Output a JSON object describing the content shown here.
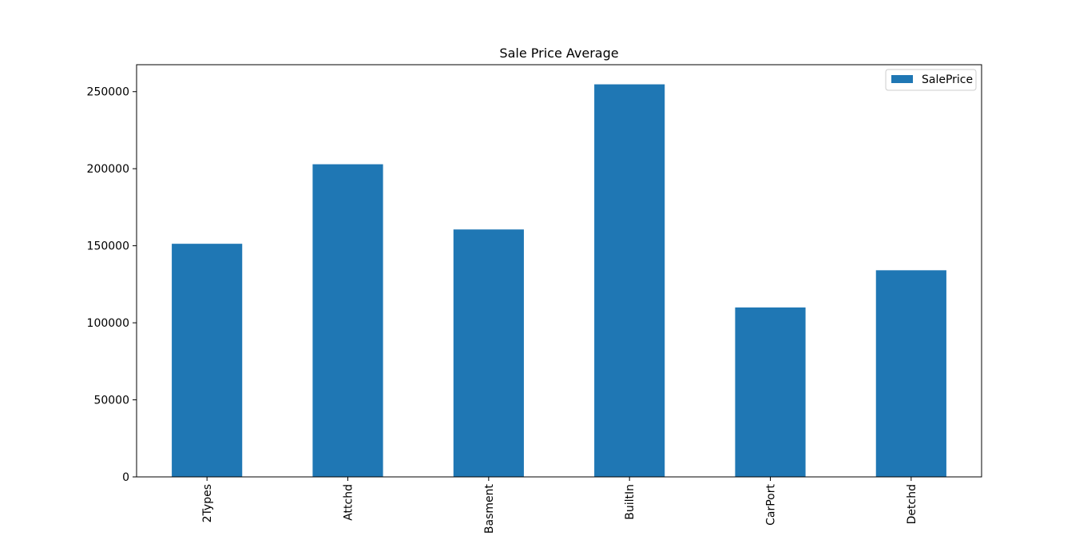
{
  "chart_data": {
    "type": "bar",
    "title": "Sale Price Average",
    "xlabel": "",
    "ylabel": "",
    "categories": [
      "2Types",
      "Attchd",
      "Basment",
      "BuiltIn",
      "CarPort",
      "Detchd"
    ],
    "series": [
      {
        "name": "SalePrice",
        "values": [
          151283,
          202893,
          160571,
          254752,
          109962,
          134091
        ],
        "color": "#1f77b4"
      }
    ],
    "ylim": [
      0,
      267490
    ],
    "yticks": [
      0,
      50000,
      100000,
      150000,
      200000,
      250000
    ],
    "ytick_labels": [
      "0",
      "50000",
      "100000",
      "150000",
      "200000",
      "250000"
    ],
    "grid": false,
    "legend": "top-right"
  }
}
